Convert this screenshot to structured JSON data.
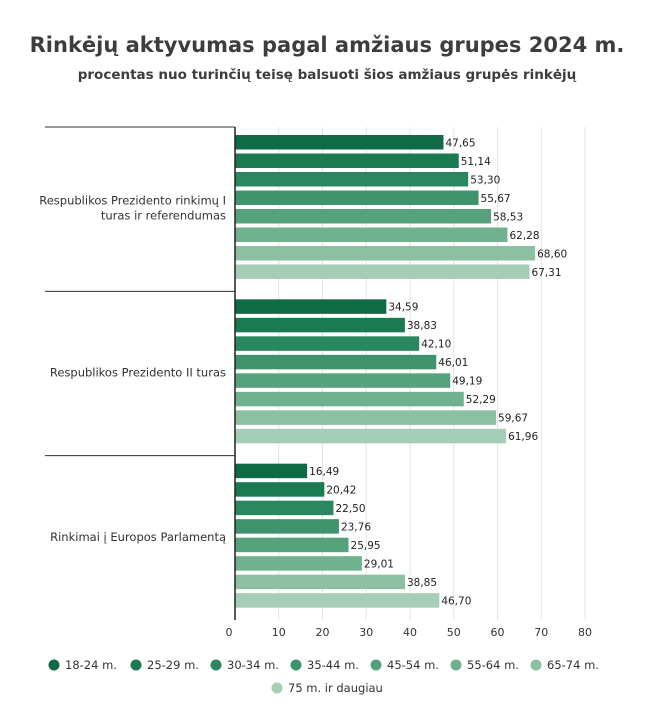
{
  "chart_data": {
    "type": "bar",
    "orientation": "horizontal",
    "title": "Rinkėjų aktyvumas pagal amžiaus grupes 2024 m.",
    "subtitle": "procentas nuo turinčių teisę balsuoti šios amžiaus grupės rinkėjų",
    "categories": [
      "Respublikos Prezidento rinkimų I turas ir referendumas",
      "Respublikos Prezidento II turas",
      "Rinkimai į Europos Parlamentą"
    ],
    "series": [
      {
        "name": "18-24 m.",
        "color": "#0f6b45",
        "values": [
          47.65,
          34.59,
          16.49
        ]
      },
      {
        "name": "25-29 m.",
        "color": "#1a7a52",
        "values": [
          51.14,
          38.83,
          20.42
        ]
      },
      {
        "name": "30-34 m.",
        "color": "#2a875f",
        "values": [
          53.3,
          42.1,
          22.5
        ]
      },
      {
        "name": "35-44 m.",
        "color": "#3f946d",
        "values": [
          55.67,
          46.01,
          23.76
        ]
      },
      {
        "name": "45-54 m.",
        "color": "#56a27d",
        "values": [
          58.53,
          49.19,
          25.95
        ]
      },
      {
        "name": "55-64 m.",
        "color": "#70b18f",
        "values": [
          62.28,
          52.29,
          29.01
        ]
      },
      {
        "name": "65-74 m.",
        "color": "#8cc0a3",
        "values": [
          68.6,
          59.67,
          38.85
        ]
      },
      {
        "name": "75 m. ir daugiau",
        "color": "#a6cdb7",
        "values": [
          67.31,
          61.96,
          46.7
        ]
      }
    ],
    "value_labels": [
      [
        "47,65",
        "34,59",
        "16,49"
      ],
      [
        "51,14",
        "38,83",
        "20,42"
      ],
      [
        "53,30",
        "42,10",
        "22,50"
      ],
      [
        "55,67",
        "46,01",
        "23,76"
      ],
      [
        "58,53",
        "49,19",
        "25,95"
      ],
      [
        "62,28",
        "52,29",
        "29,01"
      ],
      [
        "68,60",
        "59,67",
        "38,85"
      ],
      [
        "67,31",
        "61,96",
        "46,70"
      ]
    ],
    "xlim": [
      0,
      80
    ],
    "xticks": [
      0,
      10,
      20,
      30,
      40,
      50,
      60,
      70,
      80
    ],
    "grid": true,
    "legend": "bottom"
  }
}
